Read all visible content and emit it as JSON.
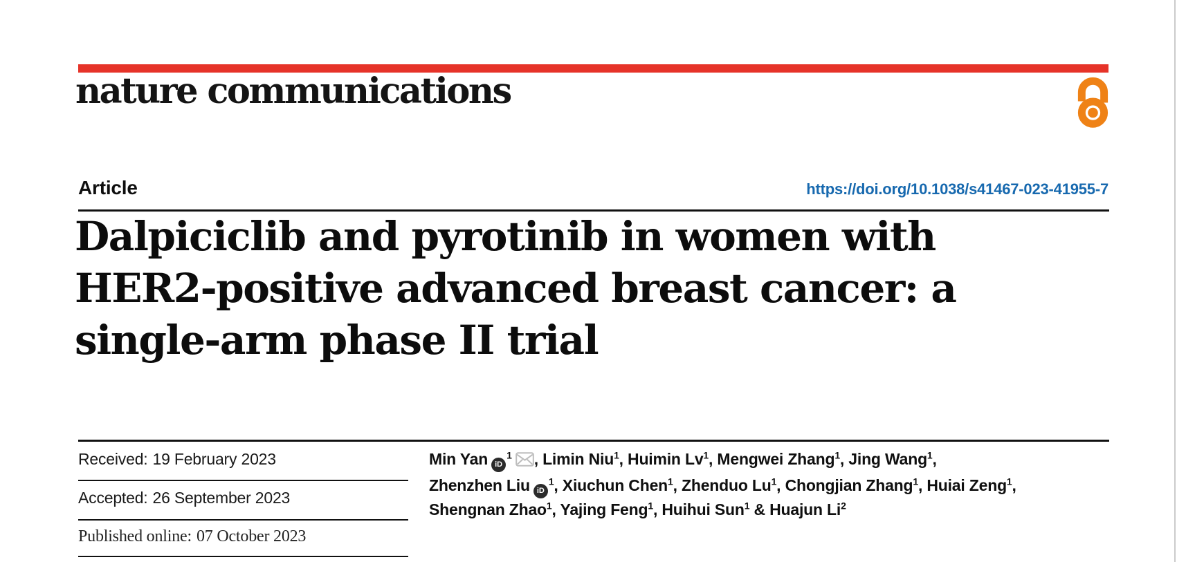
{
  "brand": {
    "logo_text": "nature communications",
    "bar_color": "#e63329",
    "open_access_icon_color": "#ef8216"
  },
  "article": {
    "type_label": "Article",
    "doi_link": "https://doi.org/10.1038/s41467-023-41955-7",
    "doi_color": "#1769af",
    "title_lines": [
      "Dalpiciclib and pyrotinib in women with",
      "HER2-positive advanced breast cancer: a",
      "single-arm phase II trial"
    ]
  },
  "dates": [
    {
      "label": "Received:",
      "value": "19 February 2023"
    },
    {
      "label": "Accepted:",
      "value": "26 September 2023"
    },
    {
      "label": "Published online:",
      "value": "07 October 2023"
    }
  ],
  "authors": {
    "orcid_label": "iD",
    "lines": [
      [
        {
          "name": "Min Yan",
          "orcid": true,
          "sup": "1",
          "email": true,
          "sep": ", "
        },
        {
          "name": "Limin Niu",
          "sup": "1",
          "sep": ", "
        },
        {
          "name": "Huimin Lv",
          "sup": "1",
          "sep": ", "
        },
        {
          "name": "Mengwei Zhang",
          "sup": "1",
          "sep": ", "
        },
        {
          "name": "Jing Wang",
          "sup": "1",
          "sep": ","
        }
      ],
      [
        {
          "name": "Zhenzhen Liu",
          "orcid": true,
          "sup": "1",
          "sep": ", "
        },
        {
          "name": "Xiuchun Chen",
          "sup": "1",
          "sep": ", "
        },
        {
          "name": "Zhenduo Lu",
          "sup": "1",
          "sep": ", "
        },
        {
          "name": "Chongjian Zhang",
          "sup": "1",
          "sep": ", "
        },
        {
          "name": "Huiai Zeng",
          "sup": "1",
          "sep": ","
        }
      ],
      [
        {
          "name": "Shengnan Zhao",
          "sup": "1",
          "sep": ", "
        },
        {
          "name": "Yajing Feng",
          "sup": "1",
          "sep": ", "
        },
        {
          "name": "Huihui Sun",
          "sup": "1",
          "sep": " & "
        },
        {
          "name": "Huajun Li",
          "sup": "2",
          "sep": ""
        }
      ]
    ]
  }
}
